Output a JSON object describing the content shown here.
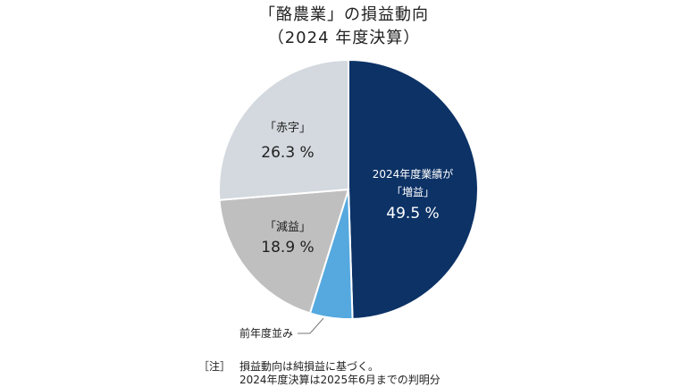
{
  "title": "「酪農業」の損益動向",
  "subtitle": "（2024 年度決算）",
  "chart_data": {
    "type": "pie",
    "slices": [
      {
        "label_lines": [
          "2024年度業績が",
          "「増益」"
        ],
        "value": 49.5,
        "value_label": "49.5 %",
        "color": "#0c3266",
        "text_color": "#ffffff"
      },
      {
        "label_lines": [
          "前年度並み"
        ],
        "value": 5.3,
        "value_label": "",
        "color": "#55a9df",
        "text_color": "#222222"
      },
      {
        "label_lines": [
          "「減益」"
        ],
        "value": 18.9,
        "value_label": "18.9 %",
        "color": "#bfbfbf",
        "text_color": "#222222"
      },
      {
        "label_lines": [
          "「赤字」"
        ],
        "value": 26.3,
        "value_label": "26.3 %",
        "color": "#d3d9de",
        "text_color": "#222222"
      }
    ],
    "start_angle_deg": 0,
    "direction": "clockwise"
  },
  "notes": {
    "prefix": "［注］",
    "line1": "損益動向は純損益に基づく。",
    "line2": "2024年度決算は2025年6月までの判明分"
  }
}
